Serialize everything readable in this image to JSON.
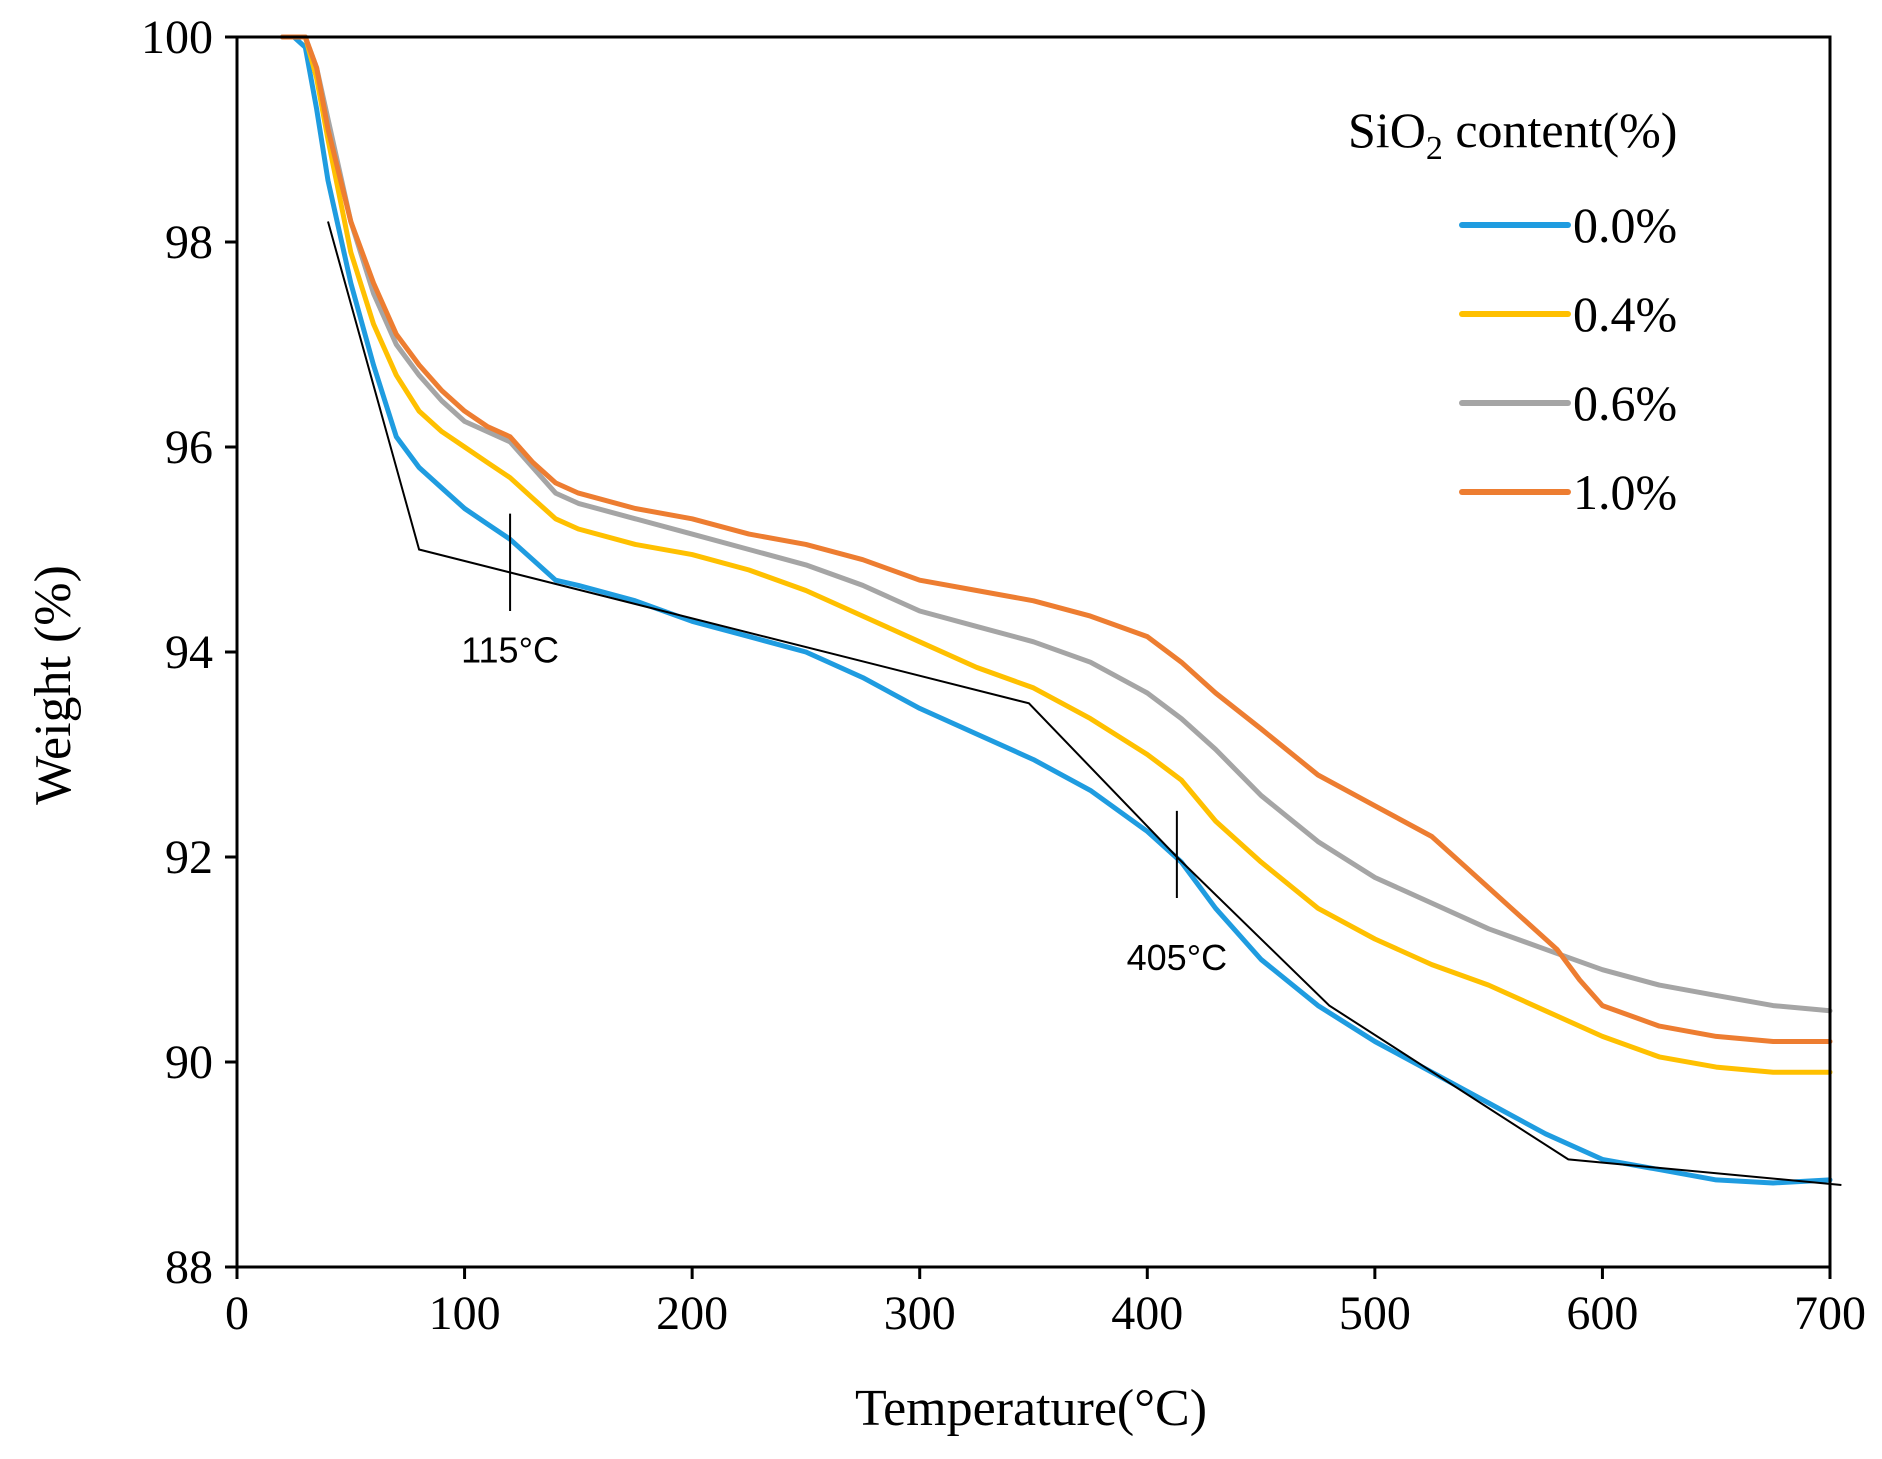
{
  "chart_data": {
    "type": "line",
    "xlabel": "Temperature(°C)",
    "ylabel": "Weight (%)",
    "xlim": [
      0,
      700
    ],
    "ylim": [
      88,
      100
    ],
    "xticks": [
      "0",
      "100",
      "200",
      "300",
      "400",
      "500",
      "600",
      "700"
    ],
    "yticks": [
      "88",
      "90",
      "92",
      "94",
      "96",
      "98",
      "100"
    ],
    "grid": false,
    "legend": {
      "title_prefix": "SiO",
      "title_subscript": "2",
      "title_suffix": " content(%)",
      "placement": "top-right"
    },
    "series": [
      {
        "name": "0.0%",
        "color": "#1f9ce0",
        "x": [
          20,
          25,
          30,
          35,
          40,
          50,
          60,
          70,
          80,
          90,
          100,
          110,
          120,
          130,
          140,
          150,
          175,
          200,
          225,
          250,
          275,
          300,
          325,
          350,
          375,
          400,
          415,
          430,
          450,
          475,
          500,
          525,
          550,
          575,
          600,
          625,
          650,
          675,
          700
        ],
        "y": [
          100,
          100,
          99.9,
          99.3,
          98.6,
          97.6,
          96.8,
          96.1,
          95.8,
          95.6,
          95.4,
          95.25,
          95.1,
          94.9,
          94.7,
          94.65,
          94.5,
          94.3,
          94.15,
          94.0,
          93.75,
          93.45,
          93.2,
          92.95,
          92.65,
          92.25,
          91.95,
          91.5,
          91.0,
          90.55,
          90.2,
          89.9,
          89.6,
          89.3,
          89.05,
          88.95,
          88.85,
          88.82,
          88.85
        ]
      },
      {
        "name": "0.4%",
        "color": "#ffc000",
        "x": [
          20,
          25,
          30,
          35,
          40,
          50,
          60,
          70,
          80,
          90,
          100,
          110,
          120,
          130,
          140,
          150,
          175,
          200,
          225,
          250,
          275,
          300,
          325,
          350,
          375,
          400,
          415,
          430,
          450,
          475,
          500,
          525,
          550,
          575,
          600,
          625,
          650,
          675,
          700
        ],
        "y": [
          100,
          100,
          100,
          99.6,
          99.0,
          97.9,
          97.2,
          96.7,
          96.35,
          96.15,
          96.0,
          95.85,
          95.7,
          95.5,
          95.3,
          95.2,
          95.05,
          94.95,
          94.8,
          94.6,
          94.35,
          94.1,
          93.85,
          93.65,
          93.35,
          93.0,
          92.75,
          92.35,
          91.95,
          91.5,
          91.2,
          90.95,
          90.75,
          90.5,
          90.25,
          90.05,
          89.95,
          89.9,
          89.9
        ]
      },
      {
        "name": "0.6%",
        "color": "#a5a5a5",
        "x": [
          20,
          25,
          30,
          35,
          40,
          50,
          60,
          70,
          80,
          90,
          100,
          110,
          120,
          130,
          140,
          150,
          175,
          200,
          225,
          250,
          275,
          300,
          325,
          350,
          375,
          400,
          415,
          430,
          450,
          475,
          500,
          525,
          550,
          575,
          600,
          625,
          650,
          675,
          700
        ],
        "y": [
          100,
          100,
          100,
          99.7,
          99.2,
          98.2,
          97.5,
          97.0,
          96.7,
          96.45,
          96.25,
          96.15,
          96.05,
          95.8,
          95.55,
          95.45,
          95.3,
          95.15,
          95.0,
          94.85,
          94.65,
          94.4,
          94.25,
          94.1,
          93.9,
          93.6,
          93.35,
          93.05,
          92.6,
          92.15,
          91.8,
          91.55,
          91.3,
          91.1,
          90.9,
          90.75,
          90.65,
          90.55,
          90.5
        ]
      },
      {
        "name": "1.0%",
        "color": "#ed7d31",
        "x": [
          20,
          25,
          30,
          35,
          40,
          50,
          60,
          70,
          80,
          90,
          100,
          110,
          120,
          130,
          140,
          150,
          175,
          200,
          225,
          250,
          275,
          300,
          325,
          350,
          375,
          400,
          415,
          430,
          450,
          475,
          500,
          525,
          540,
          560,
          580,
          590,
          600,
          625,
          650,
          675,
          700
        ],
        "y": [
          100,
          100,
          100,
          99.7,
          99.1,
          98.2,
          97.6,
          97.1,
          96.8,
          96.55,
          96.35,
          96.2,
          96.1,
          95.85,
          95.65,
          95.55,
          95.4,
          95.3,
          95.15,
          95.05,
          94.9,
          94.7,
          94.6,
          94.5,
          94.35,
          94.15,
          93.9,
          93.6,
          93.25,
          92.8,
          92.5,
          92.2,
          91.9,
          91.5,
          91.1,
          90.8,
          90.55,
          90.35,
          90.25,
          90.2,
          90.2
        ]
      }
    ],
    "tangent_line": {
      "color": "#000000",
      "x": [
        40,
        80,
        348,
        413,
        480,
        585,
        705
      ],
      "y": [
        98.2,
        95.0,
        93.5,
        92.0,
        90.55,
        89.05,
        88.8
      ]
    },
    "annotations": [
      {
        "text": "115°C",
        "x": 120,
        "mark_y_top": 95.35,
        "mark_y_bottom": 94.4,
        "label_y": 93.9
      },
      {
        "text": "405°C",
        "x": 413,
        "mark_y_top": 92.45,
        "mark_y_bottom": 91.6,
        "label_y": 90.9
      }
    ]
  }
}
